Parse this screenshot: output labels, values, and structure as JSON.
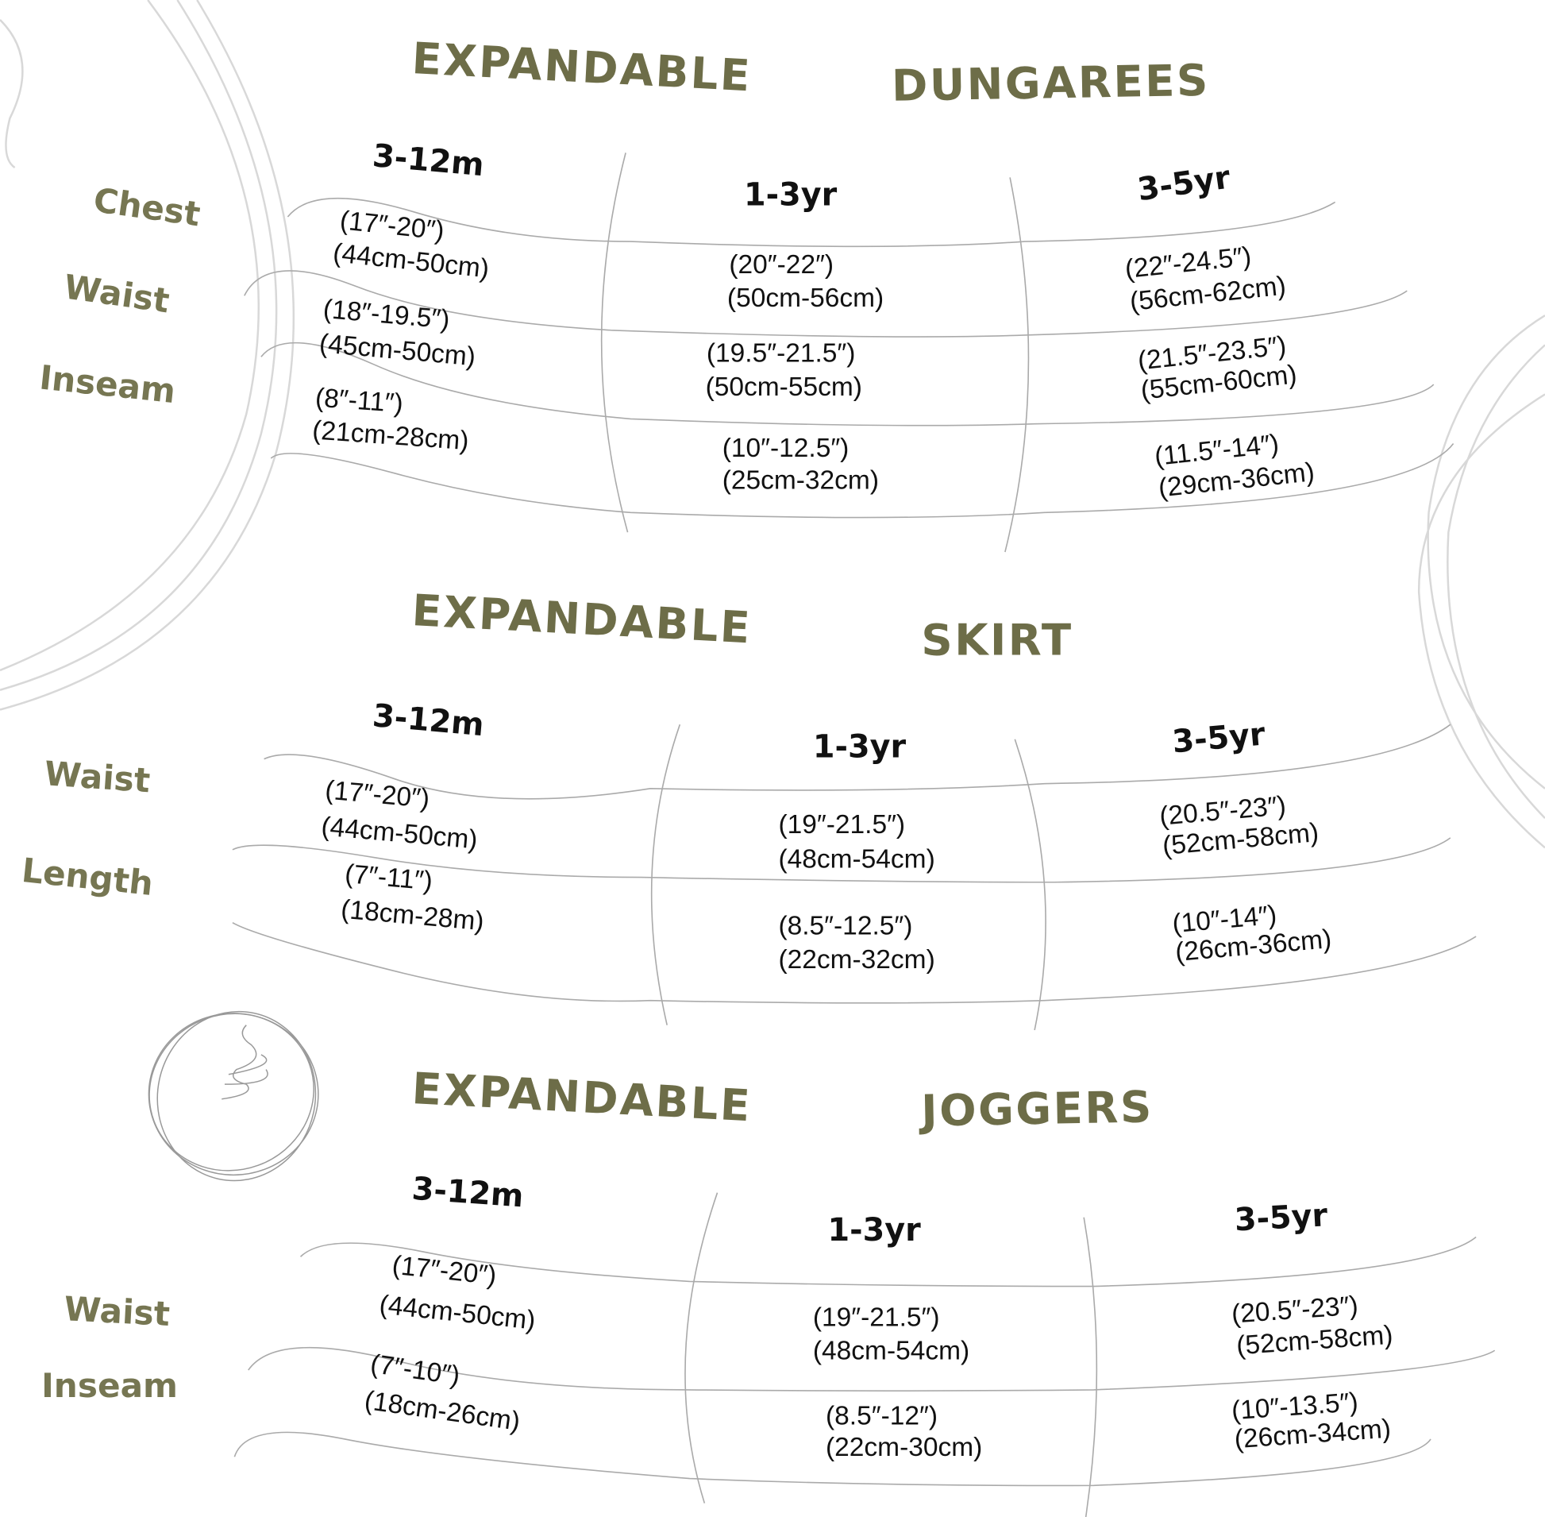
{
  "sections": [
    {
      "title_word1": "EXPANDABLE",
      "title_word2": "DUNGAREES",
      "sizes": [
        "3-12m",
        "1-3yr",
        "3-5yr"
      ],
      "rows": [
        {
          "label": "Chest",
          "values": [
            [
              "(17″-20″)",
              "(44cm-50cm)"
            ],
            [
              "(20″-22″)",
              "(50cm-56cm)"
            ],
            [
              "(22″-24.5″)",
              "(56cm-62cm)"
            ]
          ]
        },
        {
          "label": "Waist",
          "values": [
            [
              "(18″-19.5″)",
              "(45cm-50cm)"
            ],
            [
              "(19.5″-21.5″)",
              "(50cm-55cm)"
            ],
            [
              "(21.5″-23.5″)",
              "(55cm-60cm)"
            ]
          ]
        },
        {
          "label": "Inseam",
          "values": [
            [
              "(8″-11″)",
              "(21cm-28cm)"
            ],
            [
              "(10″-12.5″)",
              "(25cm-32cm)"
            ],
            [
              "(11.5″-14″)",
              "(29cm-36cm)"
            ]
          ]
        }
      ]
    },
    {
      "title_word1": "EXPANDABLE",
      "title_word2": "SKIRT",
      "sizes": [
        "3-12m",
        "1-3yr",
        "3-5yr"
      ],
      "rows": [
        {
          "label": "Waist",
          "values": [
            [
              "(17″-20″)",
              "(44cm-50cm)"
            ],
            [
              "(19″-21.5″)",
              "(48cm-54cm)"
            ],
            [
              "(20.5″-23″)",
              "(52cm-58cm)"
            ]
          ]
        },
        {
          "label": "Length",
          "values": [
            [
              "(7″-11″)",
              "(18cm-28m)"
            ],
            [
              "(8.5″-12.5″)",
              "(22cm-32cm)"
            ],
            [
              "(10″-14″)",
              "(26cm-36cm)"
            ]
          ]
        }
      ]
    },
    {
      "title_word1": "EXPANDABLE",
      "title_word2": "JOGGERS",
      "sizes": [
        "3-12m",
        "1-3yr",
        "3-5yr"
      ],
      "rows": [
        {
          "label": "Waist",
          "values": [
            [
              "(17″-20″)",
              "(44cm-50cm)"
            ],
            [
              "(19″-21.5″)",
              "(48cm-54cm)"
            ],
            [
              "(20.5″-23″)",
              "(52cm-58cm)"
            ]
          ]
        },
        {
          "label": "Inseam",
          "values": [
            [
              "(7″-10″)",
              "(18cm-26cm)"
            ],
            [
              "(8.5″-12″)",
              "(22cm-30cm)"
            ],
            [
              "(10″-13.5″)",
              "(26cm-34cm)"
            ]
          ]
        }
      ]
    }
  ],
  "colors": {
    "title": "#6d6d48",
    "label": "#767652",
    "text": "#111111",
    "lines": "#aaaaaa"
  }
}
